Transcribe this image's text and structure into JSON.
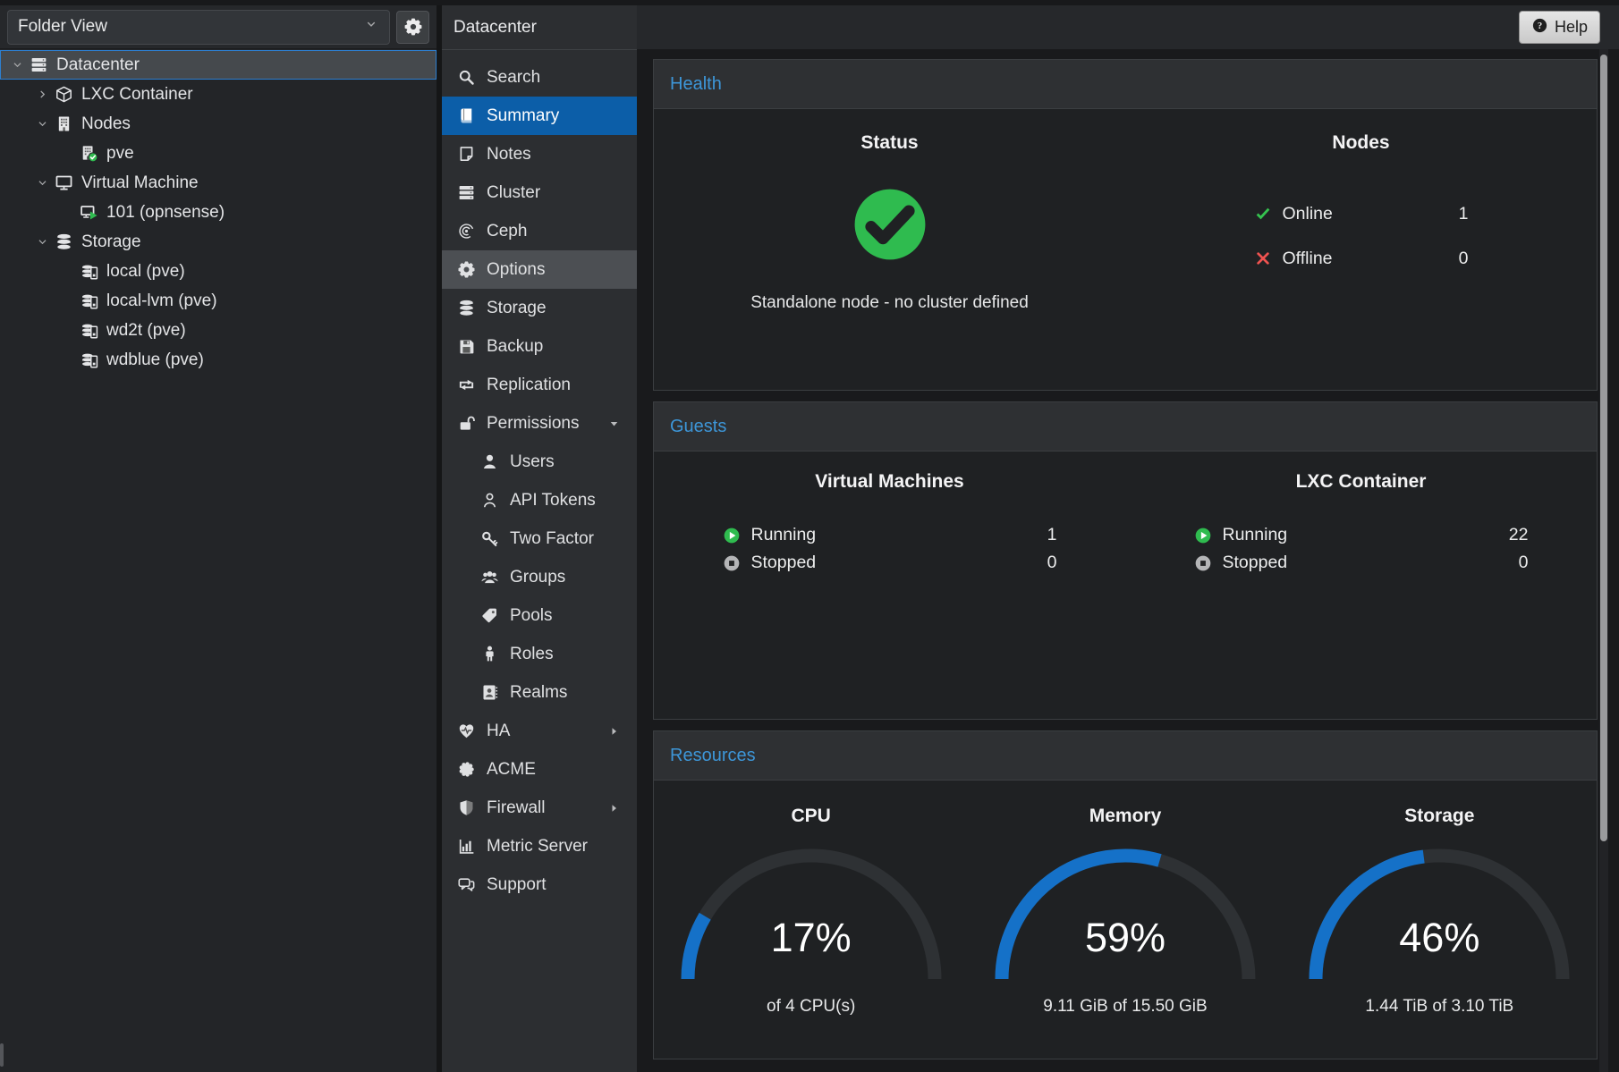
{
  "sidebar": {
    "view_select": "Folder View",
    "tree": [
      {
        "label": "Datacenter",
        "icon": "server-stack",
        "level": 0,
        "expand": "open",
        "selected": true
      },
      {
        "label": "LXC Container",
        "icon": "cube",
        "level": 1,
        "expand": "closed"
      },
      {
        "label": "Nodes",
        "icon": "building",
        "level": 1,
        "expand": "open"
      },
      {
        "label": "pve",
        "icon": "building-check",
        "level": 2
      },
      {
        "label": "Virtual Machine",
        "icon": "monitor",
        "level": 1,
        "expand": "open"
      },
      {
        "label": "101 (opnsense)",
        "icon": "monitor-play",
        "level": 2
      },
      {
        "label": "Storage",
        "icon": "database",
        "level": 1,
        "expand": "open"
      },
      {
        "label": "local (pve)",
        "icon": "database-drive",
        "level": 2
      },
      {
        "label": "local-lvm (pve)",
        "icon": "database-drive",
        "level": 2
      },
      {
        "label": "wd2t (pve)",
        "icon": "database-drive",
        "level": 2
      },
      {
        "label": "wdblue (pve)",
        "icon": "database-drive",
        "level": 2
      }
    ]
  },
  "nav": {
    "title": "Datacenter",
    "items": [
      {
        "label": "Search",
        "icon": "search"
      },
      {
        "label": "Summary",
        "icon": "book",
        "selected": true
      },
      {
        "label": "Notes",
        "icon": "note"
      },
      {
        "label": "Cluster",
        "icon": "server-stack"
      },
      {
        "label": "Ceph",
        "icon": "ceph"
      },
      {
        "label": "Options",
        "icon": "gear",
        "hover": true
      },
      {
        "label": "Storage",
        "icon": "database"
      },
      {
        "label": "Backup",
        "icon": "floppy"
      },
      {
        "label": "Replication",
        "icon": "replicate"
      },
      {
        "label": "Permissions",
        "icon": "unlock",
        "expand": "open"
      },
      {
        "label": "Users",
        "icon": "user",
        "indent": true
      },
      {
        "label": "API Tokens",
        "icon": "user-o",
        "indent": true
      },
      {
        "label": "Two Factor",
        "icon": "key",
        "indent": true
      },
      {
        "label": "Groups",
        "icon": "users",
        "indent": true
      },
      {
        "label": "Pools",
        "icon": "tag",
        "indent": true
      },
      {
        "label": "Roles",
        "icon": "person",
        "indent": true
      },
      {
        "label": "Realms",
        "icon": "address-book",
        "indent": true
      },
      {
        "label": "HA",
        "icon": "heartbeat",
        "expand": "closed"
      },
      {
        "label": "ACME",
        "icon": "acme"
      },
      {
        "label": "Firewall",
        "icon": "shield",
        "expand": "closed"
      },
      {
        "label": "Metric Server",
        "icon": "chart"
      },
      {
        "label": "Support",
        "icon": "comments"
      }
    ]
  },
  "topbar": {
    "help_label": "Help"
  },
  "health": {
    "title": "Health",
    "status": {
      "heading": "Status",
      "state_icon": "check-circle",
      "message": "Standalone node - no cluster defined"
    },
    "nodes": {
      "heading": "Nodes",
      "rows": [
        {
          "icon": "check-sm",
          "label": "Online",
          "value": "1"
        },
        {
          "icon": "cross-sm",
          "label": "Offline",
          "value": "0"
        }
      ]
    }
  },
  "guests": {
    "title": "Guests",
    "columns": [
      {
        "heading": "Virtual Machines",
        "rows": [
          {
            "icon": "play-circle",
            "label": "Running",
            "value": "1"
          },
          {
            "icon": "stop-circle",
            "label": "Stopped",
            "value": "0"
          }
        ]
      },
      {
        "heading": "LXC Container",
        "rows": [
          {
            "icon": "play-circle",
            "label": "Running",
            "value": "22"
          },
          {
            "icon": "stop-circle",
            "label": "Stopped",
            "value": "0"
          }
        ]
      }
    ]
  },
  "resources": {
    "title": "Resources"
  },
  "chart_data": {
    "type": "gauge",
    "items": [
      {
        "label": "CPU",
        "percent": 17,
        "caption": "of 4 CPU(s)"
      },
      {
        "label": "Memory",
        "percent": 59,
        "caption": "9.11 GiB of 15.50 GiB"
      },
      {
        "label": "Storage",
        "percent": 46,
        "caption": "1.44 TiB of 3.10 TiB"
      }
    ]
  },
  "colors": {
    "accent_blue": "#3d96d8",
    "nav_selected": "#0c5ea8",
    "gauge_fill": "#1571c8",
    "gauge_track": "#2e3134",
    "ok_green": "#2fbb4f",
    "error_red": "#ef5350"
  }
}
